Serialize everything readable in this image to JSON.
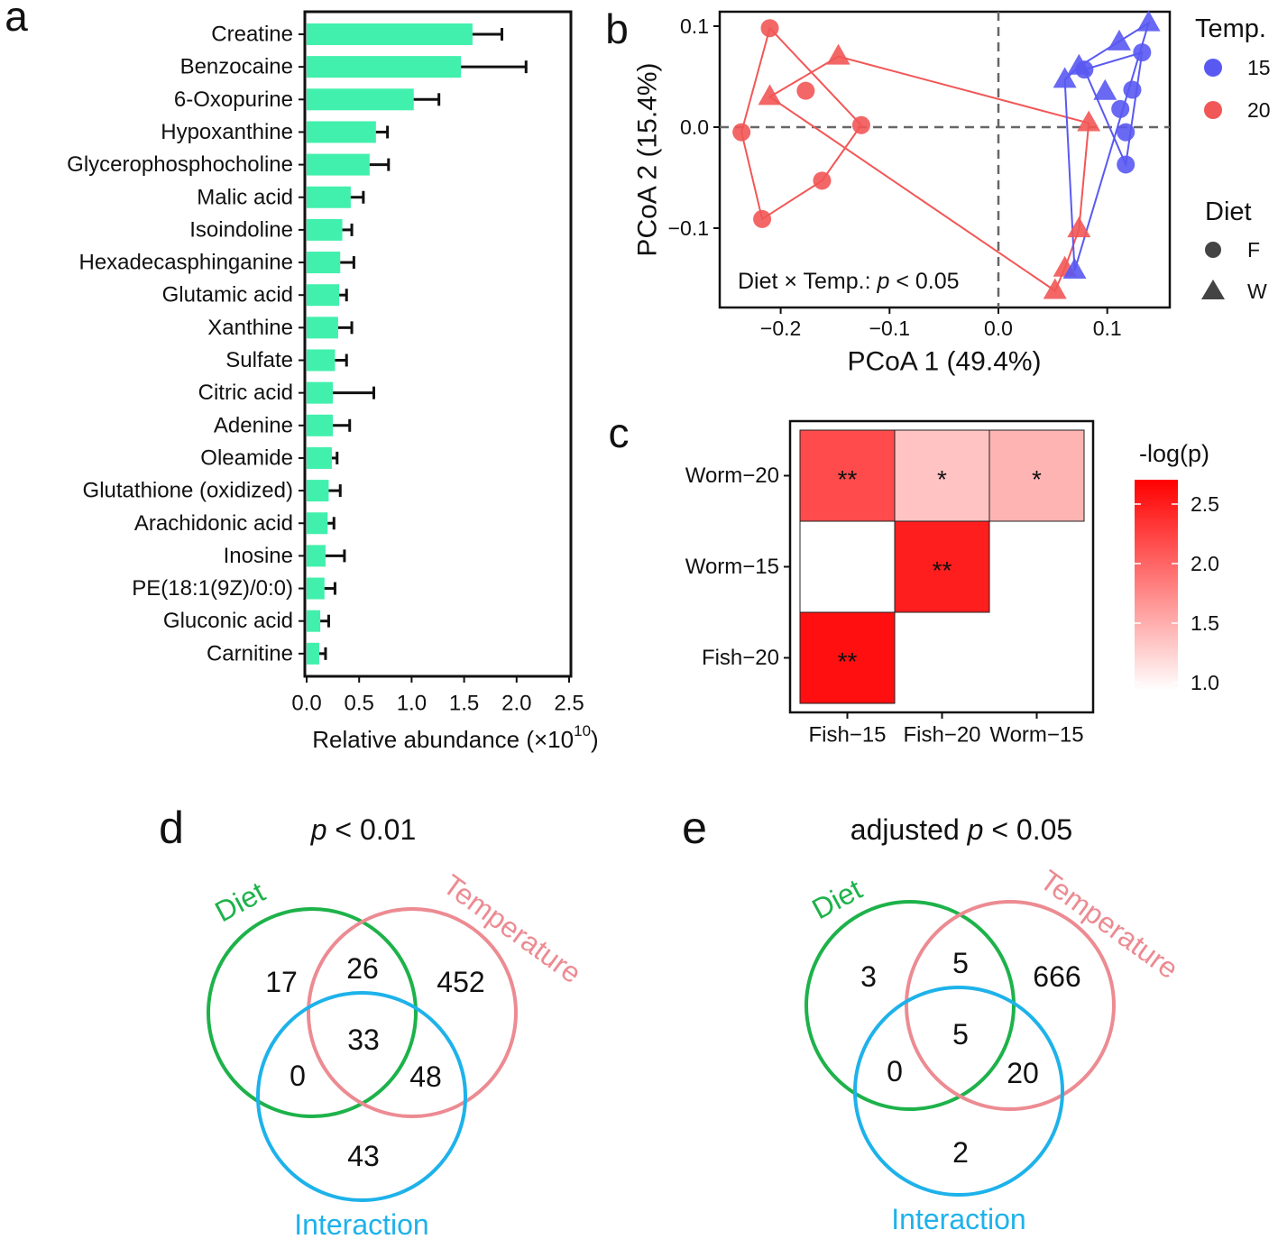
{
  "panel_letters": {
    "a": "a",
    "b": "b",
    "c": "c",
    "d": "d",
    "e": "e"
  },
  "colors": {
    "bar": "#41f0ac",
    "red": "#f25757",
    "blue": "#5959f2",
    "diet": "#1db24a",
    "temperature": "#ec8b92",
    "interaction": "#1eb2ea",
    "heat_high": "#ff0000",
    "heat_low": "#ffffff"
  },
  "chart_data": [
    {
      "id": "a",
      "type": "bar",
      "orientation": "horizontal",
      "categories": [
        "Creatine",
        "Benzocaine",
        "6-Oxopurine",
        "Hypoxanthine",
        "Glycerophosphocholine",
        "Malic acid",
        "Isoindoline",
        "Hexadecasphinganine",
        "Glutamic acid",
        "Xanthine",
        "Sulfate",
        "Citric acid",
        "Adenine",
        "Oleamide",
        "Glutathione (oxidized)",
        "Arachidonic acid",
        "Inosine",
        "PE(18:1(9Z)/0:0)",
        "Gluconic acid",
        "Carnitine"
      ],
      "values": [
        1.58,
        1.47,
        1.02,
        0.66,
        0.6,
        0.42,
        0.34,
        0.32,
        0.31,
        0.3,
        0.27,
        0.25,
        0.25,
        0.24,
        0.21,
        0.2,
        0.18,
        0.17,
        0.13,
        0.12
      ],
      "error_upper": [
        1.86,
        2.09,
        1.26,
        0.77,
        0.78,
        0.54,
        0.43,
        0.45,
        0.38,
        0.43,
        0.38,
        0.64,
        0.41,
        0.29,
        0.32,
        0.26,
        0.36,
        0.27,
        0.21,
        0.18
      ],
      "xlim": [
        0,
        2.5
      ],
      "xticks": [
        "0.0",
        "0.5",
        "1.0",
        "1.5",
        "2.0",
        "2.5"
      ],
      "xlabel": "Relative abundance (×10",
      "xlabel_sup": "10",
      "xlabel_end": ")"
    },
    {
      "id": "b",
      "type": "scatter",
      "xlabel": "PCoA 1 (49.4%)",
      "ylabel": "PCoA 2 (15.4%)",
      "xlim": [
        -0.26,
        0.155
      ],
      "ylim": [
        -0.178,
        0.113
      ],
      "xticks": [
        {
          "v": -0.2,
          "t": "−0.2"
        },
        {
          "v": -0.1,
          "t": "−0.1"
        },
        {
          "v": 0.0,
          "t": "0.0"
        },
        {
          "v": 0.1,
          "t": "0.1"
        }
      ],
      "yticks": [
        {
          "v": 0.1,
          "t": "0.1"
        },
        {
          "v": 0.0,
          "t": "0.0"
        },
        {
          "v": -0.1,
          "t": "−0.1"
        }
      ],
      "annotation_pre": "Diet × Temp.: ",
      "annotation_p": "p",
      "annotation_post": " < 0.05",
      "legend": {
        "temp_title": "Temp.",
        "temp_items": [
          "15",
          "20"
        ],
        "diet_title": "Diet",
        "diet_items": [
          "F",
          "W"
        ],
        "placement": "right"
      },
      "series": [
        {
          "name": "F-20",
          "temp": "20",
          "diet": "F",
          "points": [
            [
              -0.21,
              0.098
            ],
            [
              -0.177,
              0.036
            ],
            [
              -0.126,
              0.002
            ],
            [
              -0.236,
              -0.005
            ],
            [
              -0.162,
              -0.053
            ],
            [
              -0.217,
              -0.091
            ]
          ]
        },
        {
          "name": "W-20",
          "temp": "20",
          "diet": "W",
          "points": [
            [
              -0.147,
              0.07
            ],
            [
              -0.21,
              0.03
            ],
            [
              0.083,
              0.004
            ],
            [
              0.074,
              -0.101
            ],
            [
              0.061,
              -0.14
            ],
            [
              0.052,
              -0.162
            ]
          ]
        },
        {
          "name": "F-15",
          "temp": "15",
          "diet": "F",
          "points": [
            [
              0.079,
              0.057
            ],
            [
              0.132,
              0.074
            ],
            [
              0.123,
              0.037
            ],
            [
              0.112,
              0.018
            ],
            [
              0.117,
              -0.005
            ],
            [
              0.117,
              -0.037
            ]
          ]
        },
        {
          "name": "W-15",
          "temp": "15",
          "diet": "W",
          "points": [
            [
              0.138,
              0.103
            ],
            [
              0.111,
              0.084
            ],
            [
              0.074,
              0.06
            ],
            [
              0.061,
              0.047
            ],
            [
              0.098,
              0.035
            ],
            [
              0.07,
              -0.142
            ]
          ]
        }
      ]
    },
    {
      "id": "c",
      "type": "heatmap",
      "rows": [
        "Worm−20",
        "Worm−15",
        "Fish−20"
      ],
      "cols": [
        "Fish−15",
        "Fish−20",
        "Worm−15"
      ],
      "values": [
        [
          2.2,
          1.4,
          1.5
        ],
        [
          null,
          2.5,
          null
        ],
        [
          2.6,
          null,
          null
        ]
      ],
      "stars": [
        [
          "**",
          "*",
          "*"
        ],
        [
          "",
          "**",
          ""
        ],
        [
          "**",
          "",
          ""
        ]
      ],
      "empty_cells_drawn": [
        [
          false,
          false,
          false
        ],
        [
          true,
          false,
          false
        ],
        [
          false,
          false,
          false
        ]
      ],
      "colorbar_title": "-log(p)",
      "colorbar_ticks": [
        "2.5",
        "2.0",
        "1.5",
        "1.0"
      ],
      "colorbar_range": [
        1.0,
        2.7
      ]
    },
    {
      "id": "d",
      "type": "venn",
      "title_p": "p",
      "title_rest": " < 0.01",
      "sets": [
        "Diet",
        "Temperature",
        "Interaction"
      ],
      "regions": {
        "diet_only": "17",
        "diet_temp": "26",
        "temp_only": "452",
        "all": "33",
        "diet_inter": "0",
        "temp_inter": "48",
        "inter_only": "43"
      }
    },
    {
      "id": "e",
      "type": "venn",
      "title_pre": "adjusted ",
      "title_p": "p",
      "title_rest": " < 0.05",
      "sets": [
        "Diet",
        "Temperature",
        "Interaction"
      ],
      "regions": {
        "diet_only": "3",
        "diet_temp": "5",
        "temp_only": "666",
        "all": "5",
        "diet_inter": "0",
        "temp_inter": "20",
        "inter_only": "2"
      }
    }
  ]
}
